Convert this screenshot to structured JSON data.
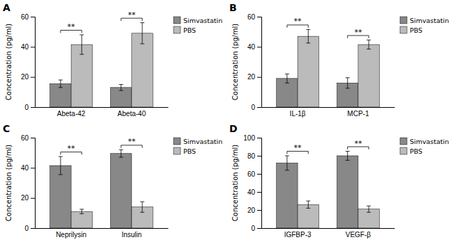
{
  "chart_data": [
    {
      "type": "bar",
      "title": "A",
      "categories": [
        "Abeta-42",
        "Abeta-40"
      ],
      "series": [
        {
          "name": "Simvastatin",
          "color": "#888888",
          "values": [
            15.5,
            13.0
          ],
          "errors": [
            2.5,
            2.0
          ]
        },
        {
          "name": "PBS",
          "color": "#bbbbbb",
          "values": [
            41.5,
            49.0
          ],
          "errors": [
            6.5,
            7.0
          ]
        }
      ],
      "y_label": "Concentration (pg/ml)",
      "ylim": [
        0,
        60
      ],
      "yticks": [
        0,
        20,
        40,
        60
      ],
      "annotations": [
        "**",
        "**"
      ],
      "legend": "upper right"
    },
    {
      "type": "bar",
      "title": "B",
      "categories": [
        "IL-1β",
        "MCP-1"
      ],
      "series": [
        {
          "name": "Simvastatin",
          "color": "#888888",
          "values": [
            19.0,
            16.0
          ],
          "errors": [
            3.0,
            3.5
          ]
        },
        {
          "name": "PBS",
          "color": "#bbbbbb",
          "values": [
            47.0,
            41.5
          ],
          "errors": [
            4.5,
            3.0
          ]
        }
      ],
      "y_label": "Concentration (pg/ml)",
      "ylim": [
        0,
        60
      ],
      "yticks": [
        0,
        20,
        40,
        60
      ],
      "annotations": [
        "**",
        "**"
      ],
      "legend": "upper right"
    },
    {
      "type": "bar",
      "title": "C",
      "categories": [
        "Neprilysin",
        "Insulin"
      ],
      "series": [
        {
          "name": "Simvastatin",
          "color": "#888888",
          "values": [
            41.5,
            49.5
          ],
          "errors": [
            6.0,
            2.5
          ]
        },
        {
          "name": "PBS",
          "color": "#bbbbbb",
          "values": [
            11.0,
            14.0
          ],
          "errors": [
            1.5,
            3.5
          ]
        }
      ],
      "y_label": "Concentration (pg/ml)",
      "ylim": [
        0,
        60
      ],
      "yticks": [
        0,
        20,
        40,
        60
      ],
      "annotations": [
        "**",
        "**"
      ],
      "legend": "upper right"
    },
    {
      "type": "bar",
      "title": "D",
      "categories": [
        "IGFBP-3",
        "VEGF-β"
      ],
      "series": [
        {
          "name": "Simvastatin",
          "color": "#888888",
          "values": [
            72.0,
            80.0
          ],
          "errors": [
            8.0,
            5.0
          ]
        },
        {
          "name": "PBS",
          "color": "#bbbbbb",
          "values": [
            26.0,
            21.0
          ],
          "errors": [
            4.0,
            3.5
          ]
        }
      ],
      "y_label": "Concentration (pg/ml)",
      "ylim": [
        0,
        100
      ],
      "yticks": [
        0,
        20,
        40,
        60,
        80,
        100
      ],
      "annotations": [
        "**",
        "**"
      ],
      "legend": "upper right"
    }
  ]
}
